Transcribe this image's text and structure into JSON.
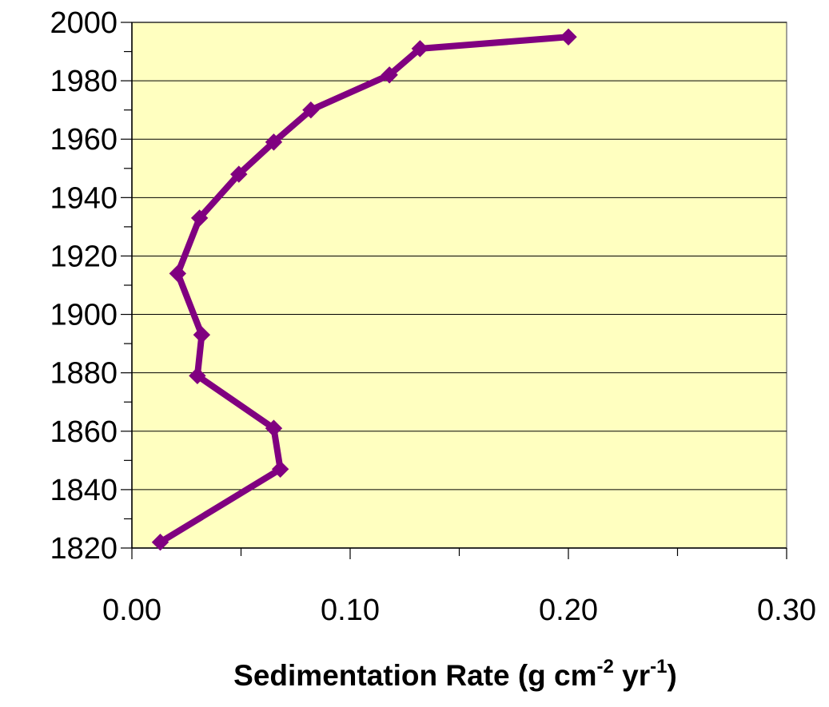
{
  "chart_data": {
    "type": "line",
    "title": "",
    "xlabel": {
      "parts": [
        {
          "text": "Sedimentation Rate (g cm",
          "sup": false
        },
        {
          "text": "-2",
          "sup": true
        },
        {
          "text": " yr",
          "sup": false
        },
        {
          "text": "-1",
          "sup": true
        },
        {
          "text": ")",
          "sup": false
        }
      ]
    },
    "ylabel": "",
    "xlim": [
      0,
      0.3
    ],
    "ylim": [
      1820,
      2000
    ],
    "xticks": [
      "0.00",
      "0.10",
      "0.20",
      "0.30"
    ],
    "xtick_values": [
      0,
      0.1,
      0.2,
      0.3
    ],
    "yticks": [
      "1820",
      "1840",
      "1860",
      "1880",
      "1900",
      "1920",
      "1940",
      "1960",
      "1980",
      "2000"
    ],
    "ytick_values": [
      1820,
      1840,
      1860,
      1880,
      1900,
      1920,
      1940,
      1960,
      1980,
      2000
    ],
    "grid": {
      "horizontal": true,
      "vertical": false
    },
    "legend": "none",
    "series": [
      {
        "x": [
          0.013,
          0.068,
          0.065,
          0.03,
          0.032,
          0.021,
          0.031,
          0.049,
          0.065,
          0.082,
          0.118,
          0.132,
          0.2
        ],
        "y": [
          1822,
          1847,
          1861,
          1879,
          1893,
          1914,
          1933,
          1948,
          1959,
          1970,
          1982,
          1991,
          1995
        ],
        "color": "#800080",
        "marker": "diamond"
      }
    ],
    "colors": {
      "plot_background": "#ffffc0",
      "gridline": "#000000",
      "series_line": "#800080"
    }
  }
}
